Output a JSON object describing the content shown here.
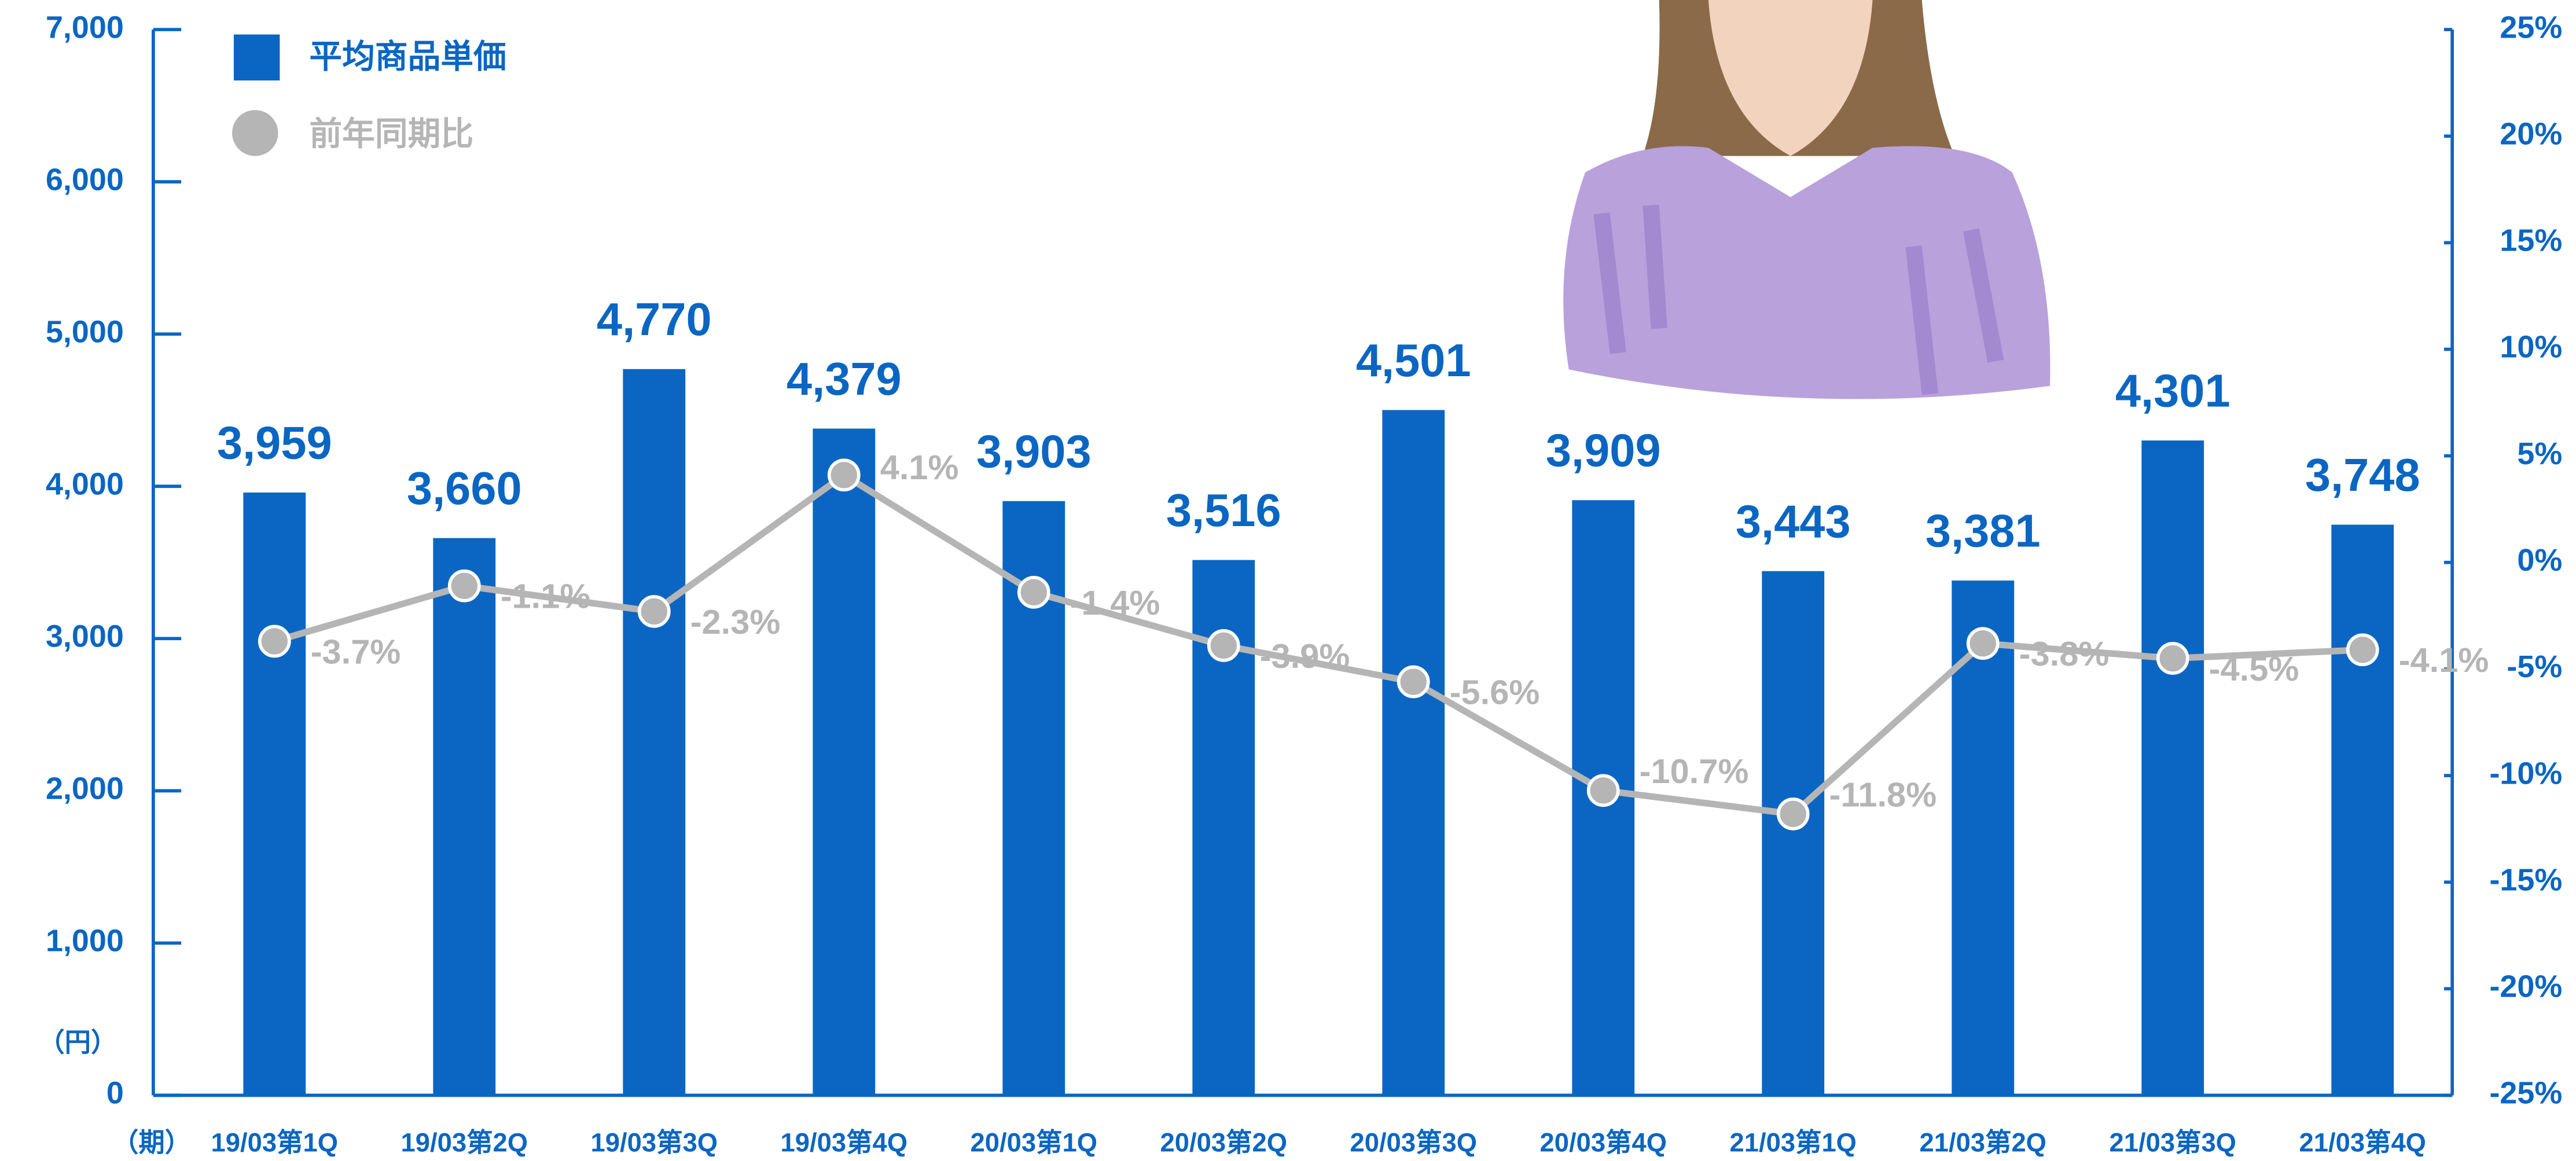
{
  "chart_data": {
    "type": "bar",
    "categories": [
      "19/03第1Q",
      "19/03第2Q",
      "19/03第3Q",
      "19/03第4Q",
      "20/03第1Q",
      "20/03第2Q",
      "20/03第3Q",
      "20/03第4Q",
      "21/03第1Q",
      "21/03第2Q",
      "21/03第3Q",
      "21/03第4Q"
    ],
    "series": [
      {
        "name": "平均商品単価",
        "color": "#0a66c2",
        "values": [
          3959,
          3660,
          4770,
          4379,
          3903,
          3516,
          4501,
          3909,
          3443,
          3381,
          4301,
          3748
        ],
        "value_labels": [
          "3,959",
          "3,660",
          "4,770",
          "4,379",
          "3,903",
          "3,516",
          "4,501",
          "3,909",
          "3,443",
          "3,381",
          "4,301",
          "3,748"
        ]
      },
      {
        "name": "前年同期比",
        "type": "line",
        "axis": "y2",
        "color": "#b5b5b5",
        "values": [
          -3.7,
          -1.1,
          -2.3,
          4.1,
          -1.4,
          -3.9,
          -5.6,
          -10.7,
          -11.8,
          -3.8,
          -4.5,
          -4.1
        ],
        "value_labels": [
          "-3.7%",
          "-1.1%",
          "-2.3%",
          "4.1%",
          "-1.4%",
          "-3.9%",
          "-5.6%",
          "-10.7%",
          "-11.8%",
          "-3.8%",
          "-4.5%",
          "-4.1%"
        ]
      }
    ],
    "ylabel": "（円）",
    "xlabel": "（期）",
    "ylim": [
      0,
      7000
    ],
    "yticks": [
      0,
      {
        "value": 1000,
        "label": "1,000"
      },
      {
        "value": 2000,
        "label": "2,000"
      },
      {
        "value": 3000,
        "label": "3,000"
      },
      {
        "value": 4000,
        "label": "4,000"
      },
      {
        "value": 5000,
        "label": "5,000"
      },
      {
        "value": 6000,
        "label": "6,000"
      },
      {
        "value": 7000,
        "label": "7,000"
      }
    ],
    "y2lim": [
      -25,
      25
    ],
    "y2ticks": [
      {
        "value": -25,
        "label": "-25%"
      },
      {
        "value": -20,
        "label": "-20%"
      },
      {
        "value": -15,
        "label": "-15%"
      },
      {
        "value": -10,
        "label": "-10%"
      },
      {
        "value": -5,
        "label": "-5%"
      },
      {
        "value": 0,
        "label": "0%"
      },
      {
        "value": 5,
        "label": "5%"
      },
      {
        "value": 10,
        "label": "10%"
      },
      {
        "value": 15,
        "label": "15%"
      },
      {
        "value": 20,
        "label": "20%"
      },
      {
        "value": 25,
        "label": "25%"
      }
    ],
    "grid": false,
    "legend": "top-left"
  }
}
